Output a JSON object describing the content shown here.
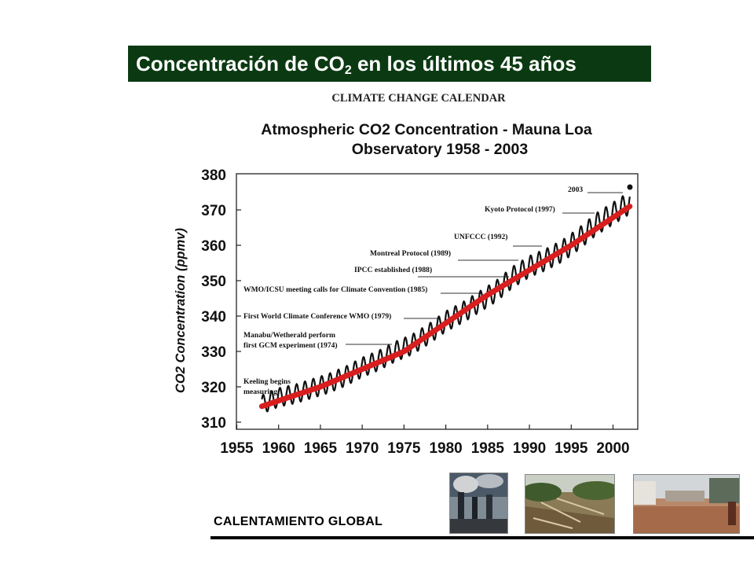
{
  "header": {
    "title_before": "Concentración de CO",
    "title_sub": "2",
    "title_after": " en los últimos 45 años"
  },
  "chart_data": {
    "type": "line",
    "kicker": "CLIMATE CHANGE CALENDAR",
    "title_line1": "Atmospheric CO2 Concentration - Mauna Loa",
    "title_line2": "Observatory 1958 - 2003",
    "ylabel": "CO2 Concentration (ppmv)",
    "xlabel": "",
    "xlim": [
      1955,
      2003
    ],
    "ylim": [
      310,
      380
    ],
    "x_ticks": [
      1955,
      1960,
      1965,
      1970,
      1975,
      1980,
      1985,
      1990,
      1995,
      2000
    ],
    "y_ticks": [
      310,
      320,
      330,
      340,
      350,
      360,
      370,
      380
    ],
    "grid": false,
    "series": [
      {
        "color": "#111111",
        "style": "seasonal oscillating line",
        "x": [
          1958,
          1960,
          1962,
          1964,
          1966,
          1968,
          1970,
          1972,
          1974,
          1976,
          1978,
          1980,
          1982,
          1984,
          1986,
          1988,
          1990,
          1992,
          1994,
          1996,
          1998,
          2000,
          2002
        ],
        "y": [
          315,
          317,
          318,
          319.5,
          321,
          323,
          325.5,
          327.5,
          330,
          332,
          335,
          338.5,
          341,
          344,
          347,
          351,
          354,
          356,
          358.5,
          362,
          366,
          369,
          372
        ]
      },
      {
        "color": "#d81e1e",
        "style": "trend line",
        "x": [
          1958,
          1965,
          1970,
          1975,
          1980,
          1985,
          1990,
          1995,
          2002
        ],
        "y": [
          314.5,
          320,
          325,
          330,
          338,
          346,
          353,
          360,
          371
        ]
      }
    ],
    "annotations": [
      {
        "text": "2003",
        "x": 2002.5,
        "y": 373.5
      },
      {
        "text": "Kyoto Protocol (1997)",
        "x": 1997,
        "y": 366
      },
      {
        "text": "UNFCCC (1992)",
        "x": 1992,
        "y": 359
      },
      {
        "text": "Montreal Protocol (1989)",
        "x": 1989,
        "y": 354
      },
      {
        "text": "IPCC established (1988)",
        "x": 1988,
        "y": 351
      },
      {
        "text": "WMO/ICSU meeting calls for Climate Convention (1985)",
        "x": 1985,
        "y": 346
      },
      {
        "text": "First World Climate Conference WMO (1979)",
        "x": 1979,
        "y": 337
      },
      {
        "text": "Manabu/Wetherald perform",
        "x": 1974,
        "y": 332
      },
      {
        "text": "first GCM experiment (1974)",
        "x": 1974,
        "y": 332
      },
      {
        "text": "Keeling begins",
        "x": 1958,
        "y": 318
      },
      {
        "text": "measuring",
        "x": 1958,
        "y": 318
      }
    ]
  },
  "footer": {
    "label": "CALENTAMIENTO GLOBAL",
    "photos": [
      "smokestacks-photo",
      "deforestation-photo",
      "flooded-street-photo"
    ]
  }
}
